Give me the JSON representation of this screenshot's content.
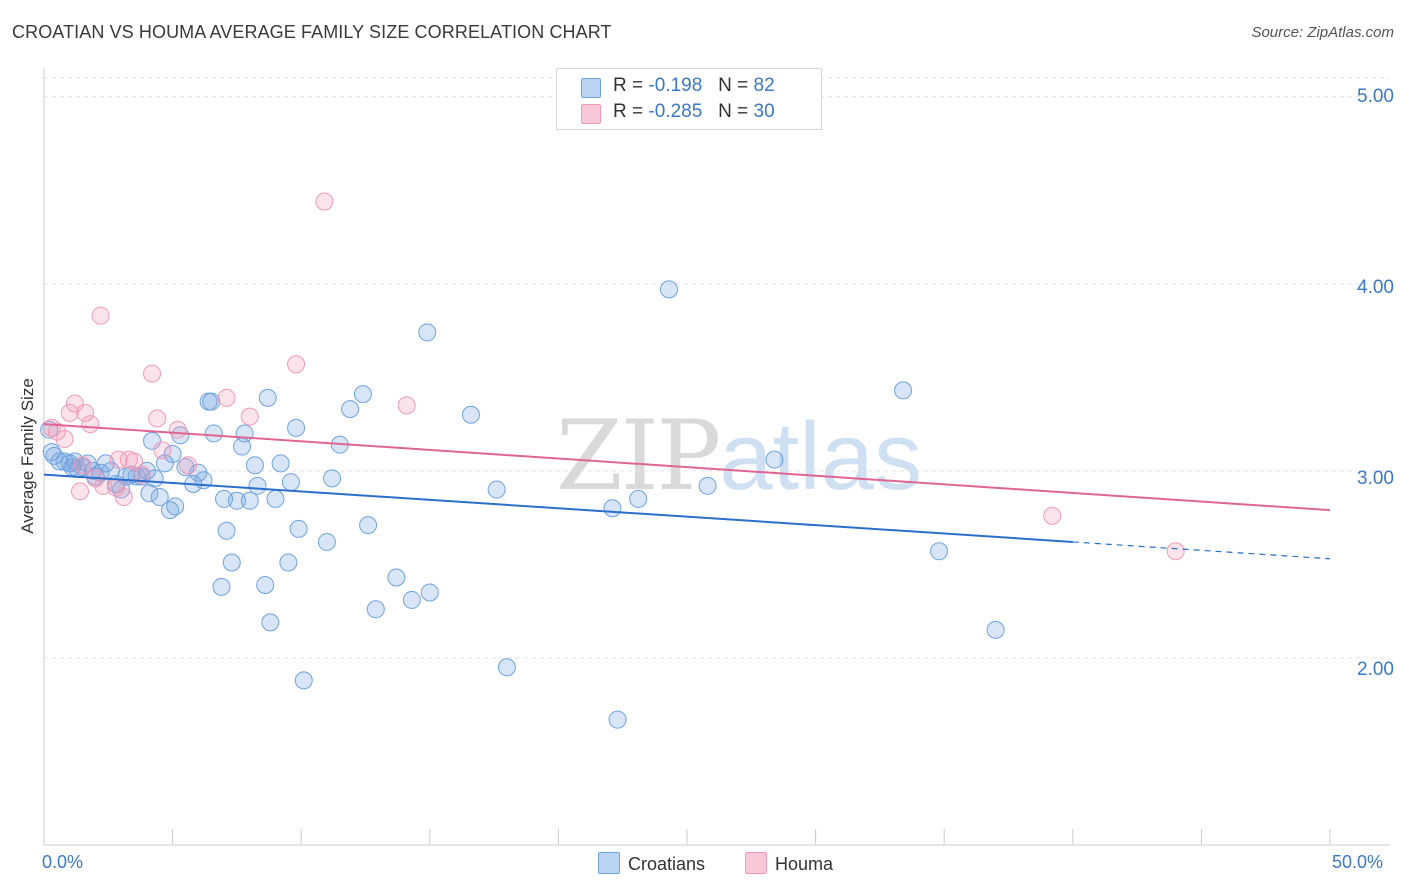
{
  "chart_data": {
    "type": "scatter",
    "title": "CROATIAN VS HOUMA AVERAGE FAMILY SIZE CORRELATION CHART",
    "source": "Source: ZipAtlas.com",
    "ylabel": "Average Family Size",
    "xlabel": "",
    "xlim": [
      0,
      50
    ],
    "ylim": [
      1.0,
      5.1
    ],
    "x_tick_labels": [
      "0.0%",
      "50.0%"
    ],
    "y_ticks": [
      2.0,
      3.0,
      4.0,
      5.0
    ],
    "y_tick_labels": [
      "2.00",
      "3.00",
      "4.00",
      "5.00"
    ],
    "grid": "horizontal dashed",
    "legend": {
      "placement": "top-center",
      "entries": [
        {
          "series": "Croatians",
          "r_label": "R =",
          "r_value": "-0.198",
          "n_label": "N =",
          "n_value": "82"
        },
        {
          "series": "Houma",
          "r_label": "R =",
          "r_value": "-0.285",
          "n_label": "N =",
          "n_value": "30"
        }
      ]
    },
    "watermark": {
      "zip": "ZIP",
      "atlas": "atlas"
    },
    "series": [
      {
        "name": "Croatians",
        "color": "#6fa3e0",
        "line_color": "#2b6fcc",
        "trend": {
          "x0": 0,
          "y0": 2.98,
          "x1": 40,
          "y1": 2.62,
          "x_dash_end": 50,
          "y_dash_end": 2.53
        },
        "points": [
          [
            0.2,
            3.22
          ],
          [
            0.4,
            3.08
          ],
          [
            0.6,
            3.05
          ],
          [
            0.8,
            3.05
          ],
          [
            1.0,
            3.04
          ],
          [
            1.1,
            3.02
          ],
          [
            1.3,
            3.01
          ],
          [
            1.5,
            3.02
          ],
          [
            1.7,
            3.04
          ],
          [
            1.9,
            3.0
          ],
          [
            2.0,
            2.97
          ],
          [
            2.2,
            2.99
          ],
          [
            2.4,
            3.04
          ],
          [
            2.6,
            3.0
          ],
          [
            2.8,
            2.93
          ],
          [
            3.0,
            2.9
          ],
          [
            3.2,
            2.97
          ],
          [
            3.4,
            2.98
          ],
          [
            3.6,
            2.97
          ],
          [
            3.8,
            2.97
          ],
          [
            4.0,
            3.0
          ],
          [
            4.1,
            2.88
          ],
          [
            4.2,
            3.16
          ],
          [
            4.3,
            2.96
          ],
          [
            4.5,
            2.86
          ],
          [
            4.7,
            3.04
          ],
          [
            4.9,
            2.79
          ],
          [
            5.0,
            3.09
          ],
          [
            5.1,
            2.81
          ],
          [
            5.3,
            3.19
          ],
          [
            5.5,
            3.02
          ],
          [
            5.8,
            2.93
          ],
          [
            6.0,
            2.99
          ],
          [
            6.2,
            2.95
          ],
          [
            6.4,
            3.37
          ],
          [
            6.5,
            3.37
          ],
          [
            6.6,
            3.2
          ],
          [
            7.0,
            2.85
          ],
          [
            7.1,
            2.68
          ],
          [
            7.3,
            2.51
          ],
          [
            6.9,
            2.38
          ],
          [
            7.5,
            2.84
          ],
          [
            7.7,
            3.13
          ],
          [
            7.8,
            3.2
          ],
          [
            8.0,
            2.84
          ],
          [
            8.2,
            3.03
          ],
          [
            8.3,
            2.92
          ],
          [
            8.6,
            2.39
          ],
          [
            8.7,
            3.39
          ],
          [
            8.8,
            2.19
          ],
          [
            9.0,
            2.85
          ],
          [
            9.2,
            3.04
          ],
          [
            9.5,
            2.51
          ],
          [
            9.6,
            2.94
          ],
          [
            9.8,
            3.23
          ],
          [
            9.9,
            2.69
          ],
          [
            10.1,
            1.88
          ],
          [
            11.0,
            2.62
          ],
          [
            11.2,
            2.96
          ],
          [
            11.5,
            3.14
          ],
          [
            11.9,
            3.33
          ],
          [
            12.4,
            3.41
          ],
          [
            12.6,
            2.71
          ],
          [
            12.9,
            2.26
          ],
          [
            13.7,
            2.43
          ],
          [
            14.3,
            2.31
          ],
          [
            14.9,
            3.74
          ],
          [
            15.0,
            2.35
          ],
          [
            16.6,
            3.3
          ],
          [
            17.6,
            2.9
          ],
          [
            18.0,
            1.95
          ],
          [
            22.1,
            2.8
          ],
          [
            22.3,
            1.67
          ],
          [
            23.1,
            2.85
          ],
          [
            24.3,
            3.97
          ],
          [
            25.8,
            2.92
          ],
          [
            28.4,
            3.06
          ],
          [
            33.4,
            3.43
          ],
          [
            34.8,
            2.57
          ],
          [
            37.0,
            2.15
          ],
          [
            0.3,
            3.1
          ],
          [
            1.2,
            3.05
          ]
        ]
      },
      {
        "name": "Houma",
        "color": "#f29ab8",
        "line_color": "#e06592",
        "trend": {
          "x0": 0,
          "y0": 3.25,
          "x1": 50,
          "y1": 2.79
        },
        "points": [
          [
            0.3,
            3.23
          ],
          [
            0.5,
            3.21
          ],
          [
            0.8,
            3.17
          ],
          [
            1.0,
            3.31
          ],
          [
            1.2,
            3.36
          ],
          [
            1.4,
            2.89
          ],
          [
            1.6,
            3.31
          ],
          [
            1.8,
            3.25
          ],
          [
            2.0,
            2.96
          ],
          [
            2.2,
            3.83
          ],
          [
            2.8,
            2.91
          ],
          [
            2.9,
            3.06
          ],
          [
            3.1,
            2.86
          ],
          [
            3.3,
            3.06
          ],
          [
            3.5,
            3.05
          ],
          [
            3.8,
            2.98
          ],
          [
            4.2,
            3.52
          ],
          [
            4.4,
            3.28
          ],
          [
            4.6,
            3.11
          ],
          [
            5.2,
            3.22
          ],
          [
            5.6,
            3.03
          ],
          [
            7.1,
            3.39
          ],
          [
            8.0,
            3.29
          ],
          [
            9.8,
            3.57
          ],
          [
            10.9,
            4.44
          ],
          [
            14.1,
            3.35
          ],
          [
            39.2,
            2.76
          ],
          [
            44.0,
            2.57
          ],
          [
            2.3,
            2.92
          ],
          [
            1.5,
            3.03
          ]
        ]
      }
    ]
  }
}
